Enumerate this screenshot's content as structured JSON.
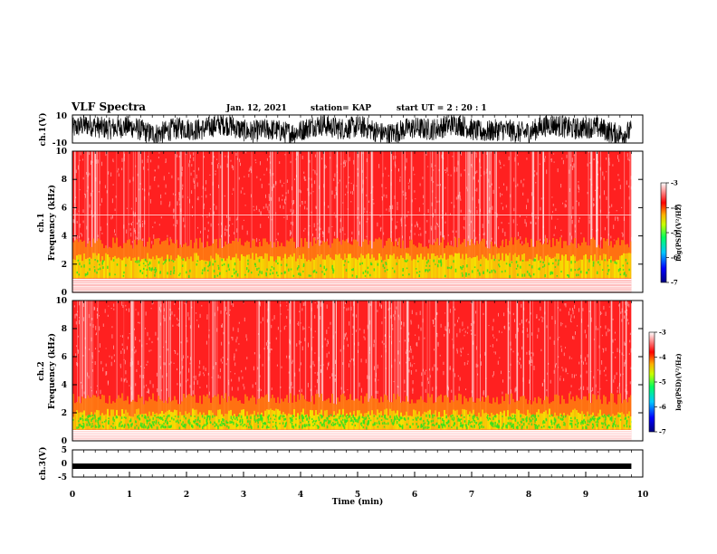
{
  "header": {
    "title": "VLF Spectra",
    "date": "Jan. 12, 2021",
    "station": "station= KAP",
    "start_ut": "start UT =  2 : 20 : 1"
  },
  "colors": {
    "spectrum_red": "#ff2020",
    "spectrum_orange": "#ff7a10",
    "spectrum_yellow": "#f5e800",
    "spectrum_green": "#30e020",
    "colorbar": [
      "#000080",
      "#0000ff",
      "#00c8ff",
      "#00ff60",
      "#c8ff00",
      "#ffb000",
      "#ff0000",
      "#ffffff"
    ]
  },
  "chart_data": [
    {
      "type": "line",
      "name": "ch1-waveform",
      "ylabel": "ch.1(V)",
      "ylim": [
        -10,
        10
      ],
      "y_ticks": [
        "10",
        "-10"
      ],
      "xlim": [
        0,
        10
      ],
      "data_extent_min": 9.8,
      "note_values": "noisy waveform, amplitude mostly between -8 and 10 V"
    },
    {
      "type": "heatmap",
      "name": "ch1-spectrogram",
      "ylabel": "ch.1\nFrequency (kHz)",
      "ylim": [
        0,
        10
      ],
      "y_ticks": [
        "0",
        "2",
        "4",
        "6",
        "8",
        "10"
      ],
      "xlim": [
        0,
        10
      ],
      "data_extent_min": 9.8,
      "bands": [
        {
          "from_khz": 0.0,
          "to_khz": 1.0,
          "level": "low/white striped"
        },
        {
          "from_khz": 1.0,
          "to_khz": 2.5,
          "level": "-5 to -4"
        },
        {
          "from_khz": 2.5,
          "to_khz": 3.5,
          "level": "-4"
        },
        {
          "from_khz": 3.5,
          "to_khz": 10.0,
          "level": "-3.5 to -3"
        }
      ],
      "colorbar": {
        "label": "log(PSD)(V²/Hz)",
        "ticks": [
          "-3",
          "-4",
          "-5",
          "-6",
          "-7"
        ],
        "range": [
          -7,
          -3
        ]
      }
    },
    {
      "type": "heatmap",
      "name": "ch2-spectrogram",
      "ylabel": "ch.2\nFrequency (kHz)",
      "ylim": [
        0,
        10
      ],
      "y_ticks": [
        "0",
        "2",
        "4",
        "6",
        "8",
        "10"
      ],
      "xlim": [
        0,
        10
      ],
      "data_extent_min": 9.8,
      "bands": [
        {
          "from_khz": 0.0,
          "to_khz": 0.8,
          "level": "low/white striped"
        },
        {
          "from_khz": 0.8,
          "to_khz": 2.0,
          "level": "-5.5 to -4.5"
        },
        {
          "from_khz": 2.0,
          "to_khz": 3.0,
          "level": "-4"
        },
        {
          "from_khz": 3.0,
          "to_khz": 10.0,
          "level": "-3.5 to -3"
        }
      ],
      "colorbar": {
        "label": "log(PSD)(V²/Hz)",
        "ticks": [
          "-3",
          "-4",
          "-5",
          "-6",
          "-7"
        ],
        "range": [
          -7,
          -3
        ]
      }
    },
    {
      "type": "line",
      "name": "ch3-waveform",
      "ylabel": "ch.3(V)",
      "ylim": [
        -5,
        5
      ],
      "y_ticks": [
        "5",
        "0",
        "-5"
      ],
      "xlim": [
        0,
        10
      ],
      "x_ticks": [
        "0",
        "1",
        "2",
        "3",
        "4",
        "5",
        "6",
        "7",
        "8",
        "9",
        "10"
      ],
      "xlabel": "Time (min)",
      "data_extent_min": 9.8,
      "note_values": "dense oscillation around -1 V, amplitude about ±0.3 V"
    }
  ]
}
